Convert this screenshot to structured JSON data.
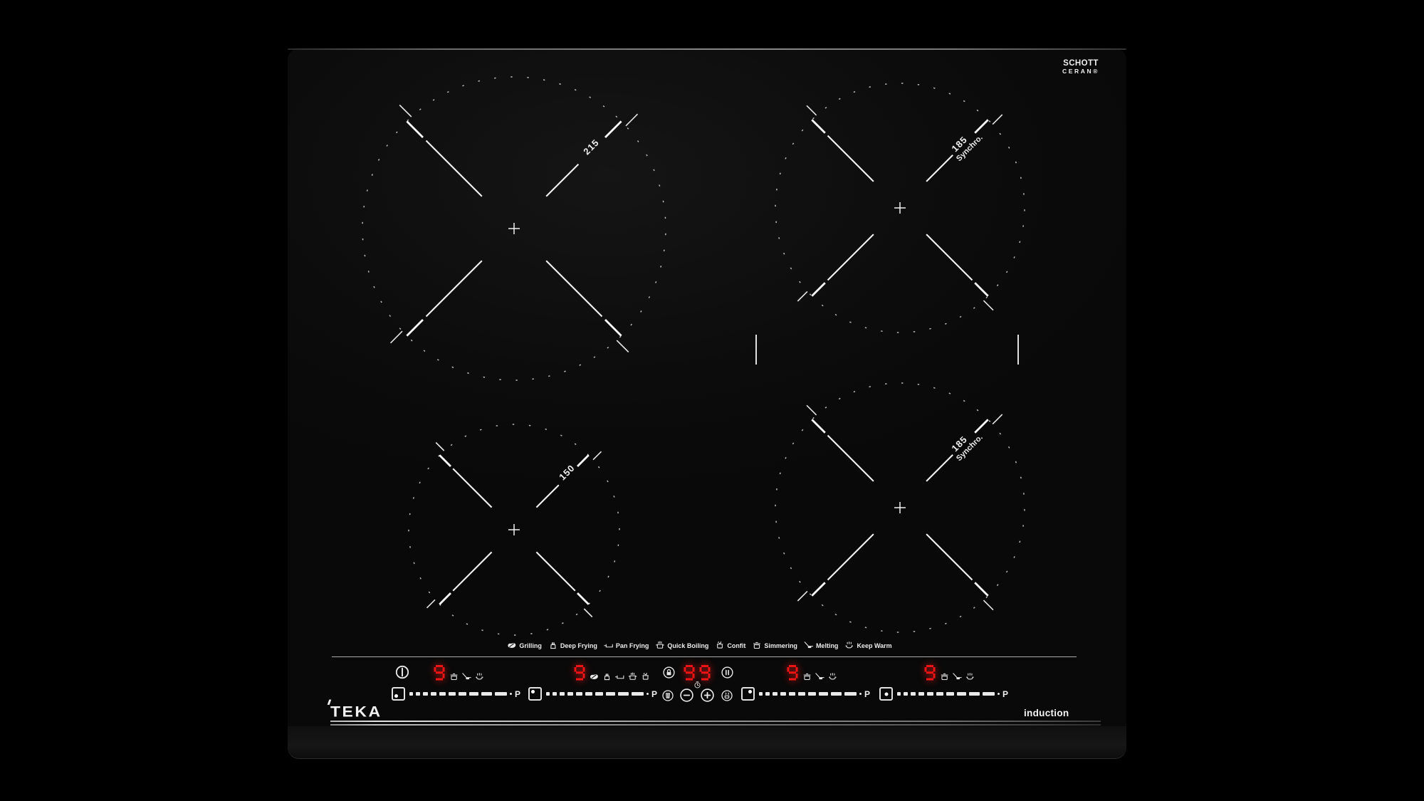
{
  "branding": {
    "schott_line1": "SCHOTT",
    "schott_line2": "CERAN®",
    "teka": "TEKA",
    "induction": "induction"
  },
  "zones": [
    {
      "id": "back-left",
      "size_label": "215",
      "sync_label": ""
    },
    {
      "id": "back-right",
      "size_label": "185",
      "sync_label": "Synchro."
    },
    {
      "id": "front-left",
      "size_label": "150",
      "sync_label": ""
    },
    {
      "id": "front-right",
      "size_label": "185",
      "sync_label": "Synchro."
    }
  ],
  "function_legend": [
    {
      "icon": "grilling-icon",
      "label": "Grilling"
    },
    {
      "icon": "deep-frying-icon",
      "label": "Deep Frying"
    },
    {
      "icon": "pan-frying-icon",
      "label": "Pan Frying"
    },
    {
      "icon": "quick-boiling-icon",
      "label": "Quick Boiling"
    },
    {
      "icon": "confit-icon",
      "label": "Confit"
    },
    {
      "icon": "simmering-icon",
      "label": "Simmering"
    },
    {
      "icon": "melting-icon",
      "label": "Melting"
    },
    {
      "icon": "keep-warm-icon",
      "label": "Keep Warm"
    }
  ],
  "displays": [
    {
      "zone": "front-left",
      "value": "9",
      "icons": [
        "simmering-icon",
        "melting-icon",
        "keep-warm-icon"
      ]
    },
    {
      "zone": "back-left",
      "value": "9",
      "icons": [
        "grilling-icon",
        "deep-frying-icon",
        "pan-frying-icon",
        "quick-boiling-icon",
        "confit-icon"
      ]
    },
    {
      "zone": "back-right",
      "value": "9",
      "icons": [
        "simmering-icon",
        "melting-icon",
        "keep-warm-icon"
      ]
    },
    {
      "zone": "front-right",
      "value": "9",
      "icons": [
        "simmering-icon",
        "melting-icon",
        "keep-warm-icon"
      ]
    }
  ],
  "timer": {
    "value": "99"
  },
  "sliders": [
    {
      "zone": "front-left",
      "dot": "bottom-left",
      "boost_label": "P"
    },
    {
      "zone": "back-left",
      "dot": "top-left",
      "boost_label": "P"
    },
    {
      "zone": "back-right",
      "dot": "top-right",
      "boost_label": "P"
    },
    {
      "zone": "front-right",
      "dot": "center",
      "boost_label": "P"
    }
  ],
  "colors": {
    "led_red": "#ee1414",
    "print_white": "#e9e9e9"
  }
}
